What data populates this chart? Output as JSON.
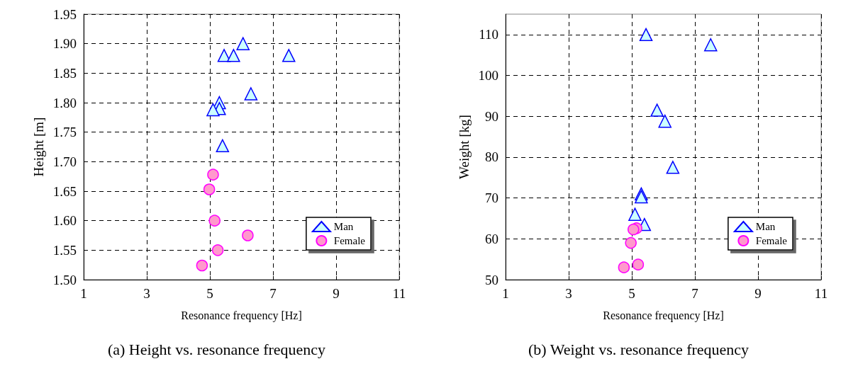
{
  "chart_data": [
    {
      "type": "scatter",
      "title": "(a) Height vs. resonance frequency",
      "xlabel": "Resonance frequency [Hz]",
      "ylabel": "Height [m]",
      "xlim": [
        1,
        11
      ],
      "xticks": [
        1,
        3,
        5,
        7,
        9,
        11
      ],
      "ylim": [
        1.5,
        1.95
      ],
      "yticks": [
        {
          "value": 1.5,
          "label": "1.50"
        },
        1.55,
        {
          "value": 1.6,
          "label": "1.60"
        },
        1.65,
        {
          "value": 1.7,
          "label": "1.70"
        },
        1.75,
        {
          "value": 1.8,
          "label": "1.80"
        },
        1.85,
        {
          "value": 1.9,
          "label": "1.90"
        },
        1.95
      ],
      "grid": true,
      "legend": "bottom right",
      "series": [
        {
          "name": "Man",
          "color": "#ccffff",
          "marker": "triangle",
          "x": [
            5.45,
            5.75,
            6.05,
            7.5,
            6.3,
            5.3,
            5.3,
            5.1,
            5.4
          ],
          "values": [
            1.88,
            1.88,
            1.9,
            1.88,
            1.815,
            1.8,
            1.79,
            1.788,
            1.727
          ]
        },
        {
          "name": "Female",
          "color": "#ff99cc",
          "marker": "circle",
          "x": [
            5.1,
            4.98,
            5.15,
            6.2,
            5.25,
            4.75
          ],
          "values": [
            1.678,
            1.653,
            1.6,
            1.575,
            1.55,
            1.524
          ]
        }
      ]
    },
    {
      "type": "scatter",
      "title": "(b) Weight vs. resonance frequency",
      "xlabel": "Resonance frequency [Hz]",
      "ylabel": "Weight [kg]",
      "xlim": [
        1,
        11
      ],
      "xticks": [
        1,
        3,
        5,
        7,
        9,
        11
      ],
      "ylim": [
        50,
        115
      ],
      "yticks": [
        50,
        60,
        70,
        80,
        90,
        100,
        110
      ],
      "grid": true,
      "legend": "bottom right",
      "series": [
        {
          "name": "Man",
          "color": "#ccffff",
          "marker": "triangle",
          "x": [
            5.45,
            7.5,
            5.8,
            6.05,
            6.3,
            5.3,
            5.3,
            5.1,
            5.4
          ],
          "values": [
            110,
            107.5,
            91.5,
            88.8,
            77.5,
            71,
            70.3,
            66,
            63.5
          ]
        },
        {
          "name": "Female",
          "color": "#ff99cc",
          "marker": "circle",
          "x": [
            5.15,
            5.05,
            4.97,
            4.75,
            5.2
          ],
          "values": [
            62.6,
            62.3,
            59,
            53,
            53.7
          ]
        }
      ]
    }
  ]
}
